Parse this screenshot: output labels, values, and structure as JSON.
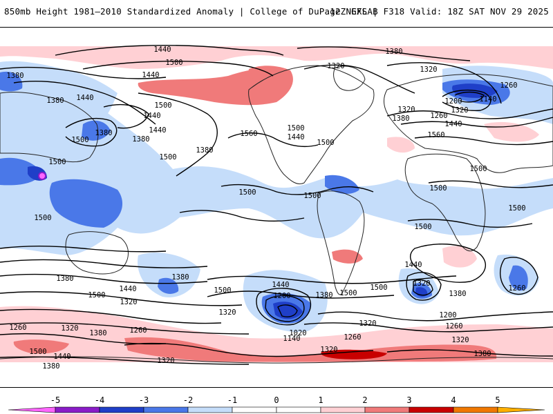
{
  "header": {
    "title": "850mb Height 1981–2010 Standardized Anomaly | College of DuPage NEXLAB",
    "run_info": "12Z GFS | F318 Valid: 18Z SAT NOV 29 2025"
  },
  "colors": {
    "neg5": "#ff66ff",
    "neg4": "#8a1cc8",
    "neg3": "#1f3fc8",
    "neg2": "#4a78e8",
    "neg1": "#c5ddfa",
    "zero": "#ffffff",
    "pos1": "#ffd0d4",
    "pos2": "#f07a7a",
    "pos3": "#c80000",
    "pos4": "#f07800",
    "pos5": "#ffb000",
    "contour": "#000000",
    "coast": "#222222"
  },
  "colorbar": {
    "ticks": [
      "-5",
      "-4",
      "-3",
      "-2",
      "-1",
      "0",
      "1",
      "2",
      "3",
      "4",
      "5"
    ]
  },
  "contour_labels": [
    {
      "t": "1440",
      "lx": 235,
      "ly": 31
    },
    {
      "t": "1500",
      "lx": 252,
      "ly": 50
    },
    {
      "t": "1440",
      "lx": 218,
      "ly": 68
    },
    {
      "t": "1380",
      "lx": 22,
      "ly": 69
    },
    {
      "t": "1440",
      "lx": 123,
      "ly": 101
    },
    {
      "t": "1380",
      "lx": 80,
      "ly": 105
    },
    {
      "t": "1500",
      "lx": 236,
      "ly": 112
    },
    {
      "t": "1440",
      "lx": 220,
      "ly": 127
    },
    {
      "t": "1380",
      "lx": 150,
      "ly": 152
    },
    {
      "t": "1440",
      "lx": 228,
      "ly": 148
    },
    {
      "t": "1500",
      "lx": 116,
      "ly": 162
    },
    {
      "t": "1380",
      "lx": 204,
      "ly": 161
    },
    {
      "t": "1500",
      "lx": 243,
      "ly": 187
    },
    {
      "t": "1380",
      "lx": 296,
      "ly": 177
    },
    {
      "t": "1500",
      "lx": 83,
      "ly": 194
    },
    {
      "t": "1500",
      "lx": 62,
      "ly": 275
    },
    {
      "t": "1560",
      "lx": 360,
      "ly": 153
    },
    {
      "t": "1500",
      "lx": 428,
      "ly": 145
    },
    {
      "t": "1440",
      "lx": 428,
      "ly": 158
    },
    {
      "t": "1500",
      "lx": 471,
      "ly": 166
    },
    {
      "t": "1500",
      "lx": 358,
      "ly": 238
    },
    {
      "t": "1500",
      "lx": 452,
      "ly": 243
    },
    {
      "t": "1380",
      "lx": 570,
      "ly": 34
    },
    {
      "t": "1320",
      "lx": 486,
      "ly": 55
    },
    {
      "t": "1320",
      "lx": 620,
      "ly": 60
    },
    {
      "t": "1320",
      "lx": 588,
      "ly": 118
    },
    {
      "t": "1380",
      "lx": 580,
      "ly": 131
    },
    {
      "t": "1260",
      "lx": 635,
      "ly": 127
    },
    {
      "t": "1200",
      "lx": 656,
      "ly": 106
    },
    {
      "t": "1320",
      "lx": 665,
      "ly": 119
    },
    {
      "t": "1140",
      "lx": 706,
      "ly": 103
    },
    {
      "t": "1260",
      "lx": 736,
      "ly": 83
    },
    {
      "t": "1440",
      "lx": 656,
      "ly": 139
    },
    {
      "t": "1560",
      "lx": 631,
      "ly": 155
    },
    {
      "t": "1500",
      "lx": 692,
      "ly": 204
    },
    {
      "t": "1500",
      "lx": 634,
      "ly": 232
    },
    {
      "t": "1500",
      "lx": 748,
      "ly": 261
    },
    {
      "t": "1500",
      "lx": 612,
      "ly": 288
    },
    {
      "t": "1440",
      "lx": 598,
      "ly": 343
    },
    {
      "t": "1380",
      "lx": 94,
      "ly": 363
    },
    {
      "t": "1380",
      "lx": 261,
      "ly": 361
    },
    {
      "t": "1440",
      "lx": 185,
      "ly": 378
    },
    {
      "t": "1500",
      "lx": 140,
      "ly": 387
    },
    {
      "t": "1320",
      "lx": 186,
      "ly": 397
    },
    {
      "t": "1500",
      "lx": 322,
      "ly": 380
    },
    {
      "t": "1440",
      "lx": 406,
      "ly": 372
    },
    {
      "t": "1380",
      "lx": 469,
      "ly": 387
    },
    {
      "t": "1320",
      "lx": 329,
      "ly": 412
    },
    {
      "t": "1500",
      "lx": 504,
      "ly": 384
    },
    {
      "t": "1200",
      "lx": 408,
      "ly": 388
    },
    {
      "t": "1500",
      "lx": 548,
      "ly": 376
    },
    {
      "t": "1320",
      "lx": 610,
      "ly": 370
    },
    {
      "t": "1380",
      "lx": 662,
      "ly": 385
    },
    {
      "t": "1200",
      "lx": 648,
      "ly": 416
    },
    {
      "t": "1260",
      "lx": 748,
      "ly": 377
    },
    {
      "t": "1260",
      "lx": 657,
      "ly": 432
    },
    {
      "t": "1260",
      "lx": 26,
      "ly": 434
    },
    {
      "t": "1320",
      "lx": 101,
      "ly": 435
    },
    {
      "t": "1260",
      "lx": 200,
      "ly": 438
    },
    {
      "t": "1380",
      "lx": 142,
      "ly": 442
    },
    {
      "t": "1320",
      "lx": 532,
      "ly": 428
    },
    {
      "t": "1260",
      "lx": 510,
      "ly": 448
    },
    {
      "t": "1020",
      "lx": 431,
      "ly": 442
    },
    {
      "t": "1140",
      "lx": 422,
      "ly": 450
    },
    {
      "t": "1320",
      "lx": 666,
      "ly": 452
    },
    {
      "t": "1500",
      "lx": 55,
      "ly": 469
    },
    {
      "t": "1440",
      "lx": 90,
      "ly": 476
    },
    {
      "t": "1320",
      "lx": 476,
      "ly": 466
    },
    {
      "t": "1380",
      "lx": 698,
      "ly": 472
    },
    {
      "t": "1320",
      "lx": 240,
      "ly": 482
    },
    {
      "t": "1380",
      "lx": 74,
      "ly": 490
    }
  ]
}
